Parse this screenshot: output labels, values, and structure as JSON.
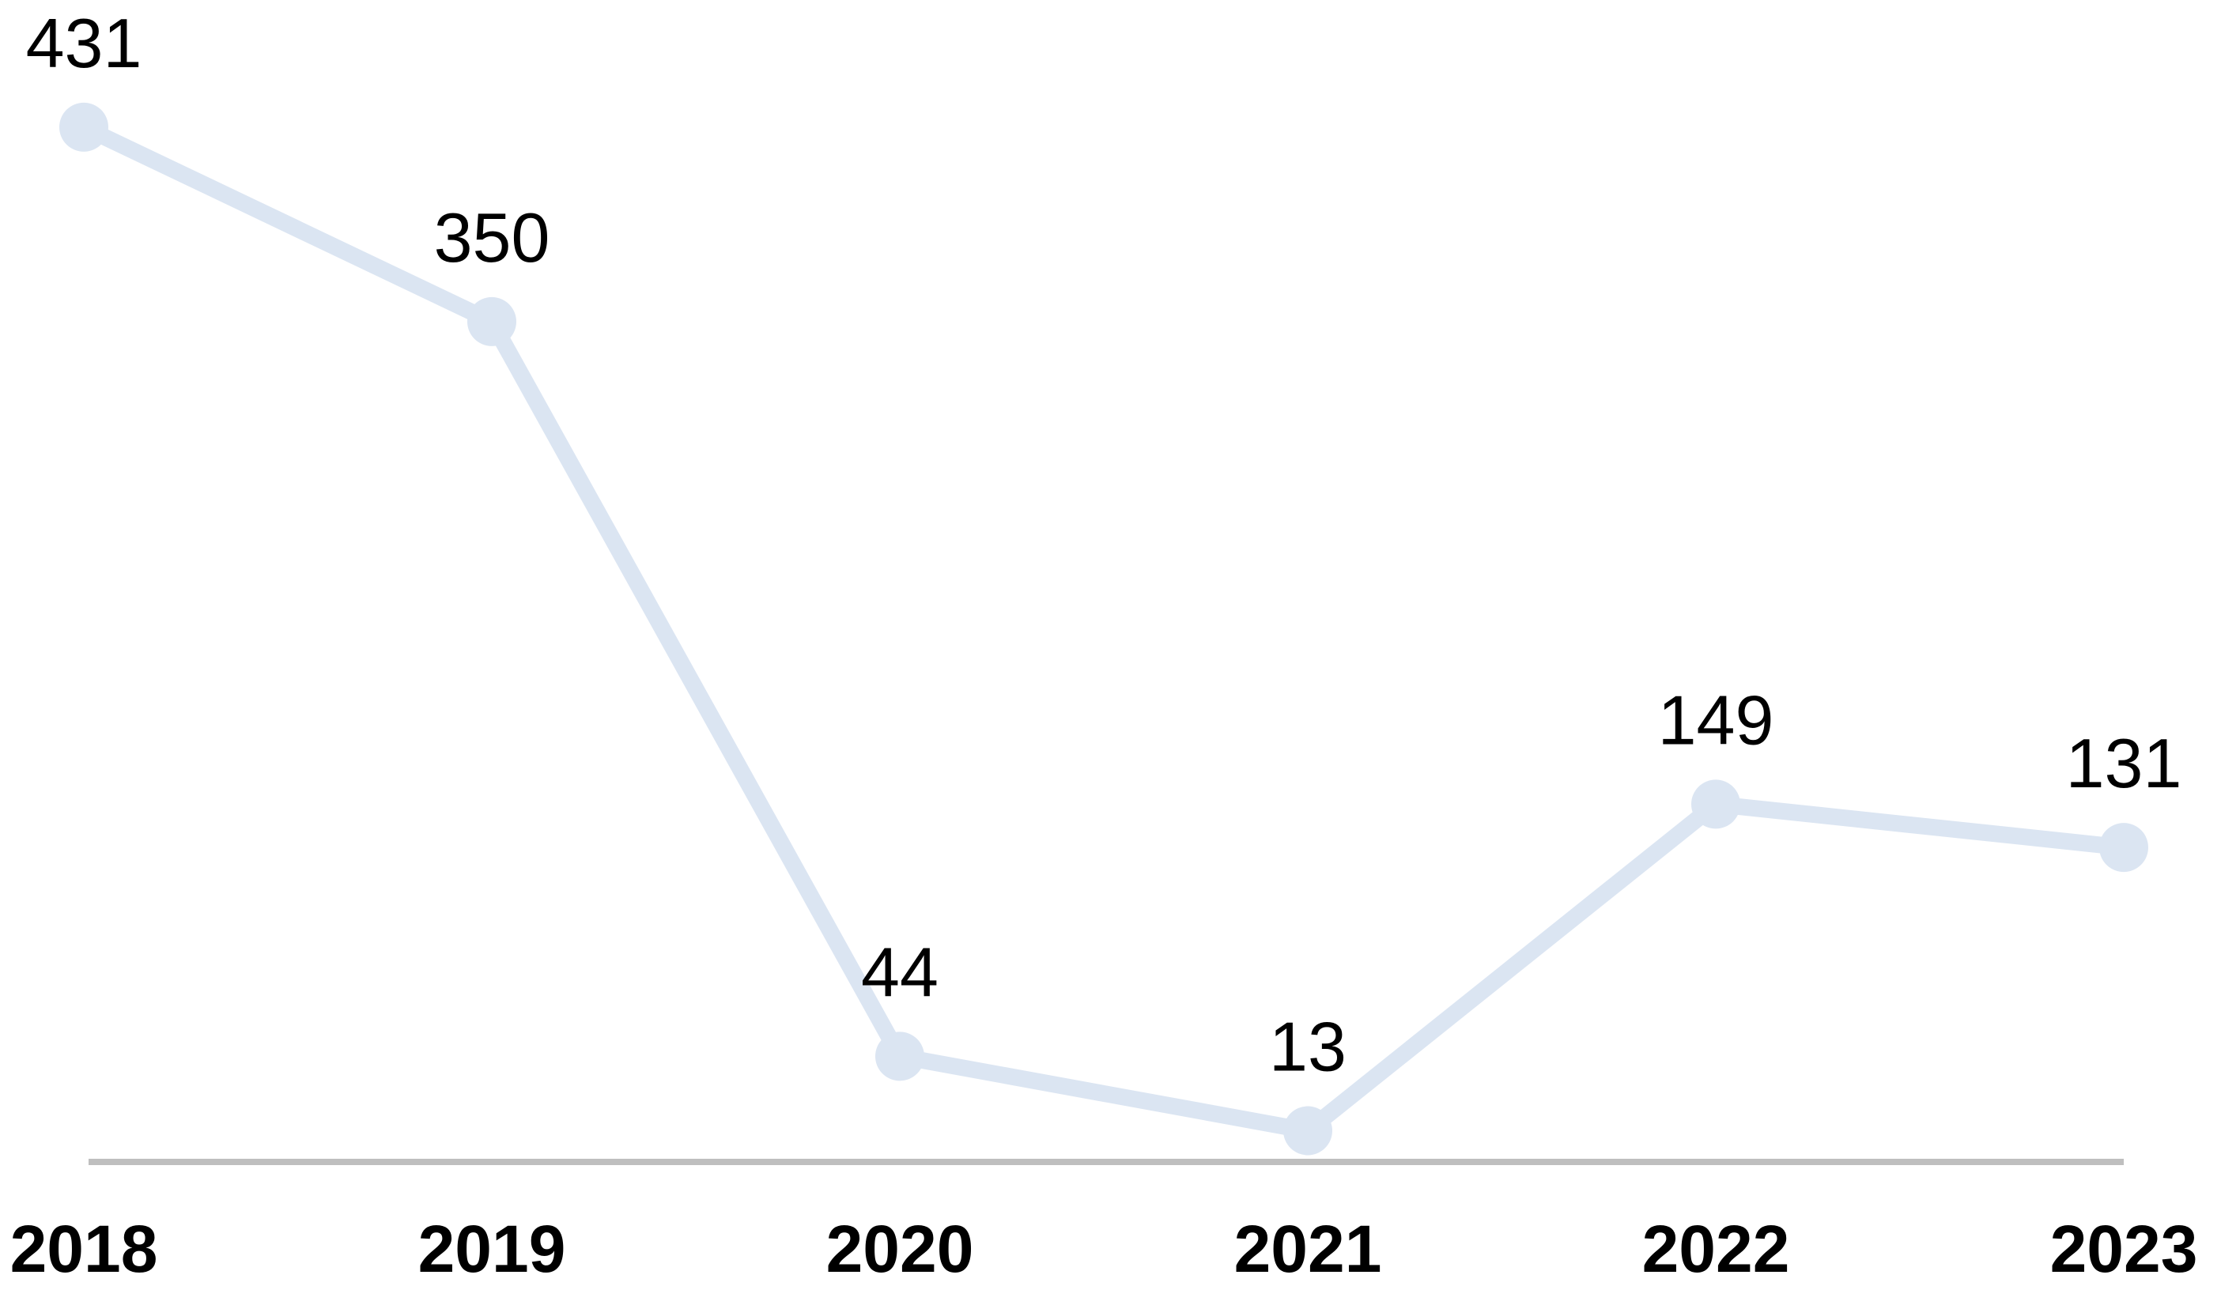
{
  "chart_data": {
    "type": "line",
    "categories": [
      "2018",
      "2019",
      "2020",
      "2021",
      "2022",
      "2023"
    ],
    "values": [
      431,
      350,
      44,
      13,
      149,
      131
    ],
    "title": "",
    "xlabel": "",
    "ylabel": "",
    "ylim": [
      0,
      480
    ],
    "grid": false,
    "legend": false,
    "data_labels_visible": true,
    "marker": "circle"
  },
  "colors": {
    "line": "#dbe5f2",
    "marker": "#dbe5f2",
    "axis_line": "#bfbfbf",
    "label_text": "#000000",
    "background": "#ffffff"
  }
}
